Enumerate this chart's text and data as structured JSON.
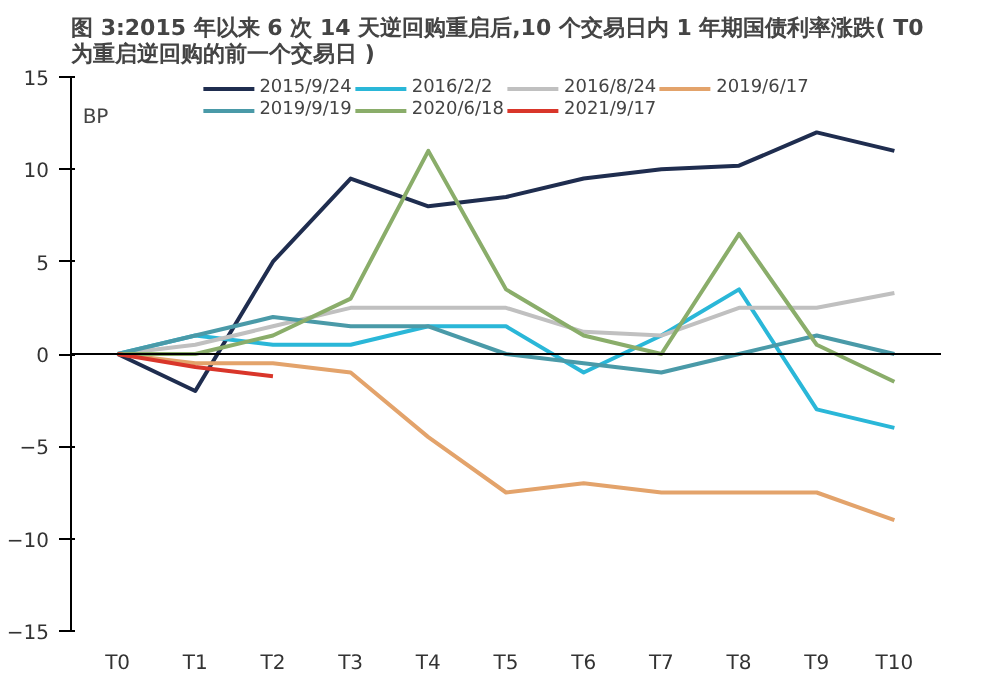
{
  "chart_data": {
    "type": "line",
    "title": "图 3:2015 年以来 6 次 14 天逆回购重启后,10 个交易日内 1 年期国债利率涨跌( T0\n为重启逆回购的前一个交易日 )",
    "ylabel": "BP",
    "categories": [
      "T0",
      "T1",
      "T2",
      "T3",
      "T4",
      "T5",
      "T6",
      "T7",
      "T8",
      "T9",
      "T10"
    ],
    "series": [
      {
        "name": "2015/9/24",
        "color": "#1f2d4f",
        "values": [
          0,
          -2,
          5,
          9.5,
          8,
          8.5,
          9.5,
          10,
          10.2,
          12,
          11
        ]
      },
      {
        "name": "2016/2/2",
        "color": "#2ab7d8",
        "values": [
          0,
          1,
          0.5,
          0.5,
          1.5,
          1.5,
          -1,
          1,
          3.5,
          -3,
          -4
        ]
      },
      {
        "name": "2016/8/24",
        "color": "#c0c0c0",
        "values": [
          0,
          0.5,
          1.5,
          2.5,
          2.5,
          2.5,
          1.2,
          1,
          2.5,
          2.5,
          3.3
        ]
      },
      {
        "name": "2019/6/17",
        "color": "#e3a36b",
        "values": [
          0,
          -0.5,
          -0.5,
          -1,
          -4.5,
          -7.5,
          -7,
          -7.5,
          -7.5,
          -7.5,
          -9
        ]
      },
      {
        "name": "2019/9/19",
        "color": "#4a9aa8",
        "values": [
          0,
          1,
          2,
          1.5,
          1.5,
          0,
          -0.5,
          -1,
          0,
          1,
          0
        ]
      },
      {
        "name": "2020/6/18",
        "color": "#8aad6a",
        "values": [
          0,
          0,
          1,
          3,
          11,
          3.5,
          1,
          0,
          6.5,
          0.5,
          -1.5
        ]
      },
      {
        "name": "2021/9/17",
        "color": "#d9362a",
        "values": [
          0,
          -0.7,
          -1.2,
          null,
          null,
          null,
          null,
          null,
          null,
          null,
          null
        ]
      }
    ],
    "ylim": [
      -15,
      15
    ],
    "yticks": [
      -15,
      -10,
      -5,
      0,
      5,
      10,
      15
    ],
    "ref_lines": [
      {
        "axis": "y",
        "value": 0,
        "color": "#000000"
      }
    ],
    "grid": false,
    "legend": "top",
    "line_style": "solid"
  }
}
